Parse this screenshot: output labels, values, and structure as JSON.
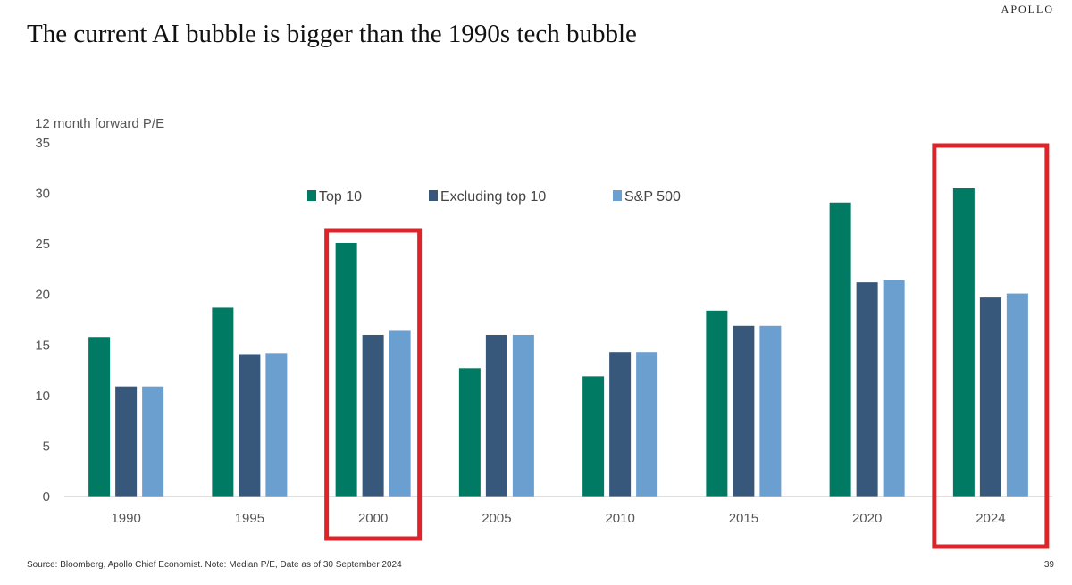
{
  "brand": "APOLLO",
  "title": "The current AI bubble is bigger than the 1990s tech bubble",
  "footer": {
    "source": "Source: Bloomberg, Apollo Chief Economist. Note: Median P/E, Date as of 30 September 2024",
    "page_number": "39"
  },
  "chart_data": {
    "type": "bar",
    "title": "",
    "xlabel": "",
    "ylabel": "12 month forward P/E",
    "ylim": [
      0,
      35
    ],
    "yticks": [
      0,
      5,
      10,
      15,
      20,
      25,
      30,
      35
    ],
    "categories": [
      "1990",
      "1995",
      "2000",
      "2005",
      "2010",
      "2015",
      "2020",
      "2024"
    ],
    "series": [
      {
        "name": "Top 10",
        "color": "#007a63",
        "values": [
          15.8,
          18.7,
          25.1,
          12.7,
          11.9,
          18.4,
          29.1,
          30.5
        ]
      },
      {
        "name": "Excluding top 10",
        "color": "#37587a",
        "values": [
          10.9,
          14.1,
          16.0,
          16.0,
          14.3,
          16.9,
          21.2,
          19.7
        ]
      },
      {
        "name": "S&P 500",
        "color": "#6a9fd0",
        "values": [
          10.9,
          14.2,
          16.4,
          16.0,
          14.3,
          16.9,
          21.4,
          20.1
        ]
      }
    ],
    "legend": "top-center",
    "grid": false,
    "highlighted_categories": [
      "2000",
      "2024"
    ],
    "highlight_color": "#e02229"
  }
}
